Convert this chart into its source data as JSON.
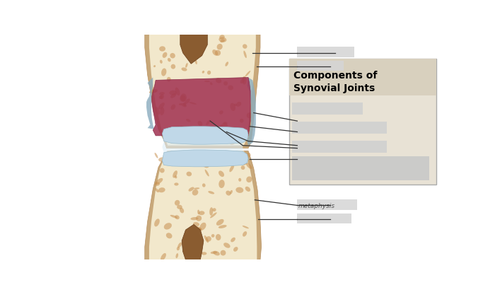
{
  "bg_color": "#ffffff",
  "box_title": "Components of\nSynovial Joints",
  "box_title_color": "#000000",
  "box_bg": "#e8e2d5",
  "box_title_bg": "#d8d0be",
  "box_border": "#aaaaaa",
  "line_color": "#333333",
  "metaphysis_text": "metaphysis",
  "metaphysis_color": "#555555",
  "periosteum_color": "#c8a87a",
  "bone_outer_color": "#e8d5a8",
  "bone_inner_color": "#f2e8cc",
  "spongy_hole_color": "#c89050",
  "marrow_color": "#8a5c30",
  "synovial_membrane_color": "#a03050",
  "capsule_color": "#9ab8cc",
  "cartilage_color": "#c0d8e8",
  "joint_space_color": "#ddeef8",
  "label_bg": "#d2d2d2",
  "label_bg2": "#c8c8c8",
  "figsize": [
    7.0,
    4.14
  ],
  "dpi": 100
}
